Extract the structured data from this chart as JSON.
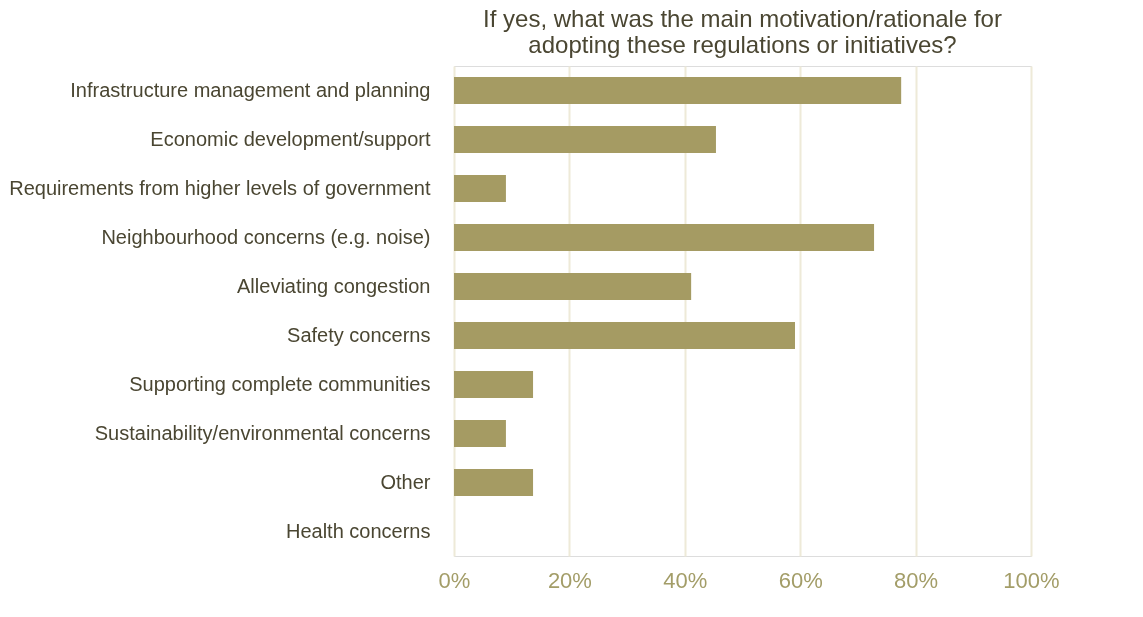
{
  "chart_data": {
    "type": "bar",
    "orientation": "horizontal",
    "title": [
      "If yes, what was the main motivation/rationale for",
      "adopting these regulations or initiatives?"
    ],
    "categories": [
      "Infrastructure management and planning",
      "Economic development/support",
      "Requirements from higher levels of government",
      "Neighbourhood concerns (e.g. noise)",
      "Alleviating congestion",
      "Safety concerns",
      "Supporting complete communities",
      "Sustainability/environmental concerns",
      "Other",
      "Health concerns"
    ],
    "values": [
      77.5,
      45.4,
      9,
      72.8,
      41.1,
      59.1,
      13.7,
      9,
      13.7,
      0
    ],
    "color": "#a59b63",
    "xlim": [
      0,
      100
    ],
    "xticks": [
      {
        "value": 0,
        "label": "0%"
      },
      {
        "value": 20,
        "label": "20%"
      },
      {
        "value": 40,
        "label": "40%"
      },
      {
        "value": 60,
        "label": "60%"
      },
      {
        "value": 80,
        "label": "80%"
      },
      {
        "value": 100,
        "label": "100%"
      }
    ],
    "grid": "x"
  }
}
